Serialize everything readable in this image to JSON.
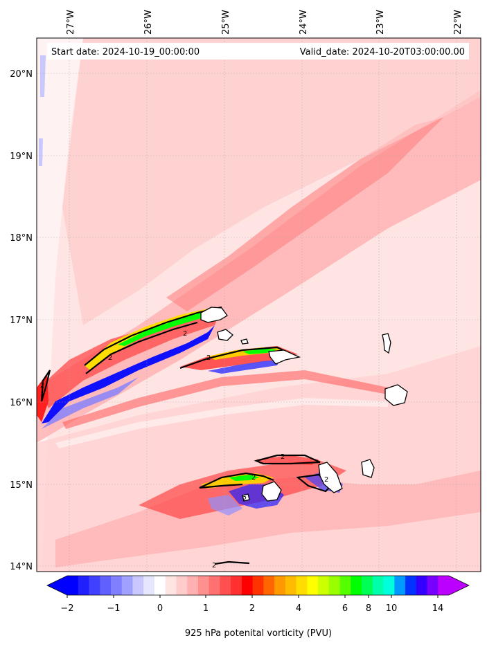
{
  "header": {
    "start_date": "Start date: 2024-10-19_00:00:00",
    "valid_date": "Valid_date: 2024-10-20T03:00:00.00"
  },
  "axes": {
    "lon_labels": [
      "27°W",
      "26°W",
      "25°W",
      "24°W",
      "23°W",
      "22°W"
    ],
    "lat_labels": [
      "20°N",
      "19°N",
      "18°N",
      "17°N",
      "16°N",
      "15°N",
      "14°N"
    ],
    "gridlines": true
  },
  "colorbar": {
    "title": "925 hPa potenital vorticity (PVU)",
    "tick_labels": [
      "−2",
      "−1",
      "0",
      "1",
      "2",
      "4",
      "6",
      "8",
      "10",
      "14"
    ],
    "colors": [
      "#0000ff",
      "#2020ff",
      "#4040ff",
      "#6060ff",
      "#8080ff",
      "#a0a0ff",
      "#c8c8ff",
      "#e6e6ff",
      "#ffffff",
      "#ffe4e4",
      "#ffcccc",
      "#ffb0b0",
      "#ff9090",
      "#ff7070",
      "#ff5050",
      "#ff3030",
      "#ff0000",
      "#ff3300",
      "#ff6600",
      "#ff9900",
      "#ffbb00",
      "#ffdd00",
      "#ffff00",
      "#ccff00",
      "#99ff00",
      "#55ff00",
      "#00ff00",
      "#00ff55",
      "#00ffaa",
      "#00ffdd",
      "#0099ff",
      "#0033ff",
      "#3300ff",
      "#7700ff",
      "#bb00ff"
    ],
    "extend": "both"
  },
  "contour_labels": [
    "2",
    "2",
    "2",
    "2",
    "2",
    "2",
    "2",
    "2",
    "2"
  ],
  "colors": {
    "background_field": "#ffe0e0",
    "high_pv": "#ff4040",
    "negative_pv": "#2020ff",
    "land_outline": "#000000"
  }
}
